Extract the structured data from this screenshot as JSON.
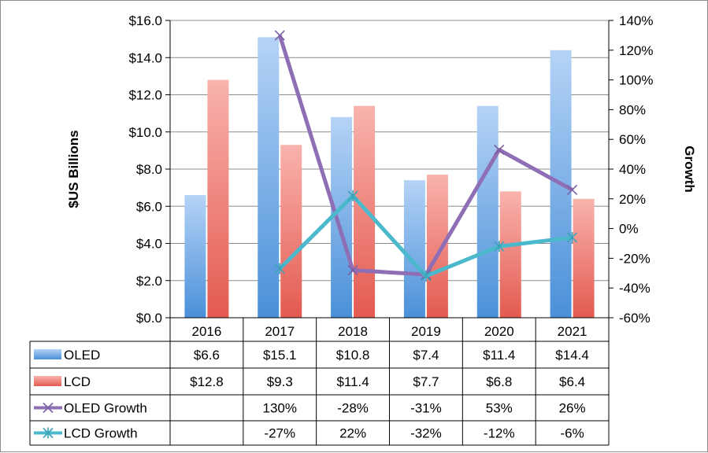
{
  "chart_data": {
    "type": "bar",
    "categories": [
      "2016",
      "2017",
      "2018",
      "2019",
      "2020",
      "2021"
    ],
    "y_left": {
      "label": "$US Billions",
      "ylim": [
        0,
        16
      ],
      "ticks": [
        0,
        2,
        4,
        6,
        8,
        10,
        12,
        14,
        16
      ],
      "tick_labels": [
        "$0.0",
        "$2.0",
        "$4.0",
        "$6.0",
        "$8.0",
        "$10.0",
        "$12.0",
        "$14.0",
        "$16.0"
      ]
    },
    "y_right": {
      "label": "Growth",
      "ylim": [
        -60,
        140
      ],
      "ticks": [
        -60,
        -40,
        -20,
        0,
        20,
        40,
        60,
        80,
        100,
        120,
        140
      ],
      "tick_labels": [
        "-60%",
        "-40%",
        "-20%",
        "0%",
        "20%",
        "40%",
        "60%",
        "80%",
        "100%",
        "120%",
        "140%"
      ]
    },
    "series": [
      {
        "name": "OLED",
        "kind": "bar",
        "axis": "left",
        "color": "#4a90d9",
        "values": [
          6.6,
          15.1,
          10.8,
          7.4,
          11.4,
          14.4
        ],
        "labels": [
          "$6.6",
          "$15.1",
          "$10.8",
          "$7.4",
          "$11.4",
          "$14.4"
        ]
      },
      {
        "name": "LCD",
        "kind": "bar",
        "axis": "left",
        "color": "#e8554e",
        "values": [
          12.8,
          9.3,
          11.4,
          7.7,
          6.8,
          6.4
        ],
        "labels": [
          "$12.8",
          "$9.3",
          "$11.4",
          "$7.7",
          "$6.8",
          "$6.4"
        ]
      },
      {
        "name": "OLED Growth",
        "kind": "line",
        "axis": "right",
        "color": "#8e6fb5",
        "marker": "x",
        "values": [
          null,
          130,
          -28,
          -31,
          53,
          26
        ],
        "labels": [
          "",
          "130%",
          "-28%",
          "-31%",
          "53%",
          "26%"
        ]
      },
      {
        "name": "LCD Growth",
        "kind": "line",
        "axis": "right",
        "color": "#4bb8cc",
        "marker": "asterisk",
        "values": [
          null,
          -27,
          22,
          -32,
          -12,
          -6
        ],
        "labels": [
          "",
          "-27%",
          "22%",
          "-32%",
          "-12%",
          "-6%"
        ]
      }
    ],
    "grid": true,
    "legend": "data-table"
  }
}
